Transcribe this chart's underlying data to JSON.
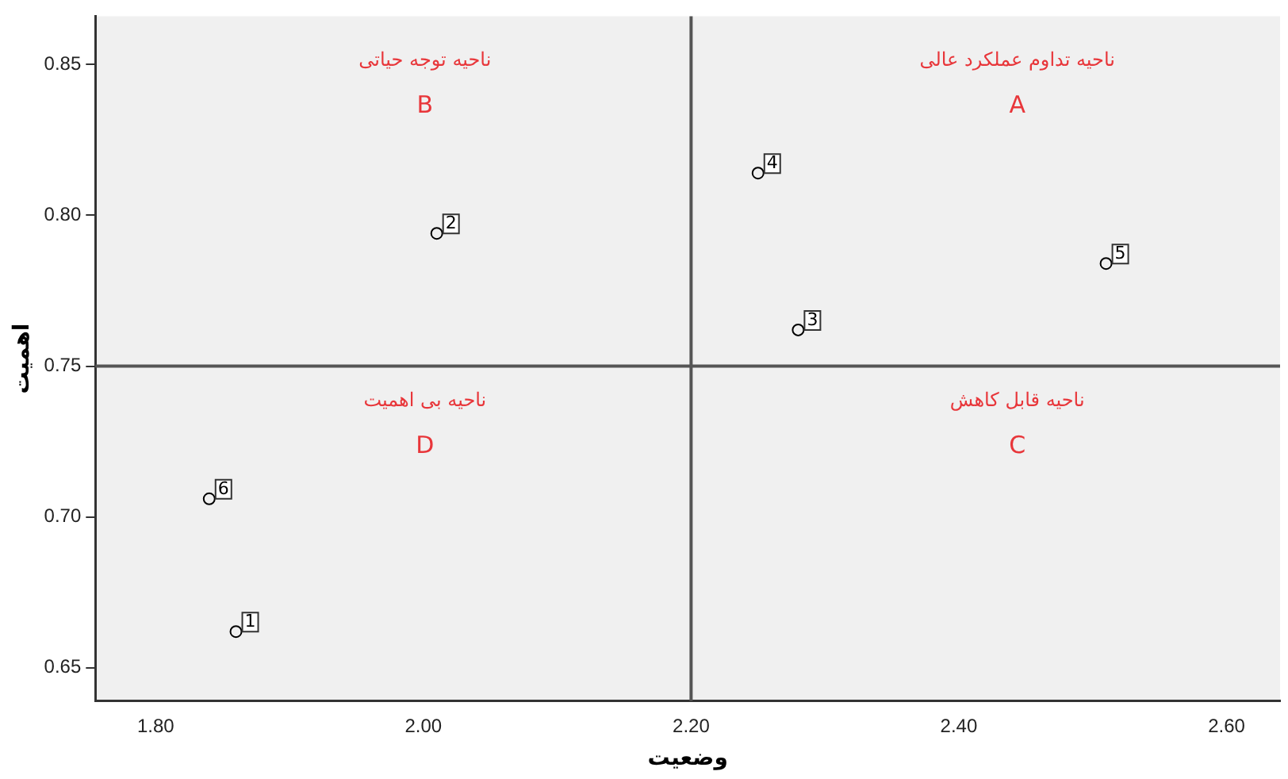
{
  "chart_data": {
    "type": "scatter",
    "xlabel": "وضعیت",
    "ylabel": "اهمیت",
    "x": [
      1.86,
      2.01,
      2.28,
      2.25,
      2.51,
      1.84
    ],
    "values": [
      0.662,
      0.794,
      0.762,
      0.814,
      0.784,
      0.706
    ],
    "color": "#000000",
    "marker": "circle",
    "grid": false,
    "legend": false,
    "xlim": [
      1.755,
      2.64
    ],
    "ylim": [
      0.639,
      0.866
    ],
    "xticks": [
      {
        "value": 1.8,
        "label": "1.80"
      },
      {
        "value": 2.0,
        "label": "2.00"
      },
      {
        "value": 2.2,
        "label": "2.20"
      },
      {
        "value": 2.4,
        "label": "2.40"
      },
      {
        "value": 2.6,
        "label": "2.60"
      }
    ],
    "yticks": [
      0.65,
      {
        "value": 0.7,
        "label": "0.70"
      },
      0.75,
      {
        "value": 0.8,
        "label": "0.80"
      },
      0.85
    ],
    "ref_lines": [
      {
        "axis": "x",
        "value": 2.2,
        "color": "#555555"
      },
      {
        "axis": "y",
        "value": 0.75,
        "color": "#555555"
      }
    ],
    "annotations": [
      {
        "text": "1",
        "x": 1.86,
        "y": 0.662
      },
      {
        "text": "2",
        "x": 2.01,
        "y": 0.794
      },
      {
        "text": "3",
        "x": 2.28,
        "y": 0.762
      },
      {
        "text": "4",
        "x": 2.25,
        "y": 0.814
      },
      {
        "text": "5",
        "x": 2.51,
        "y": 0.784
      },
      {
        "text": "6",
        "x": 1.84,
        "y": 0.706
      },
      "ناحیه توجه حیاتی",
      "B",
      "ناحیه تداوم عملکرد عالی",
      "A",
      "ناحیه بی اهمیت",
      "D",
      "ناحیه قابل کاهش",
      "C"
    ]
  }
}
